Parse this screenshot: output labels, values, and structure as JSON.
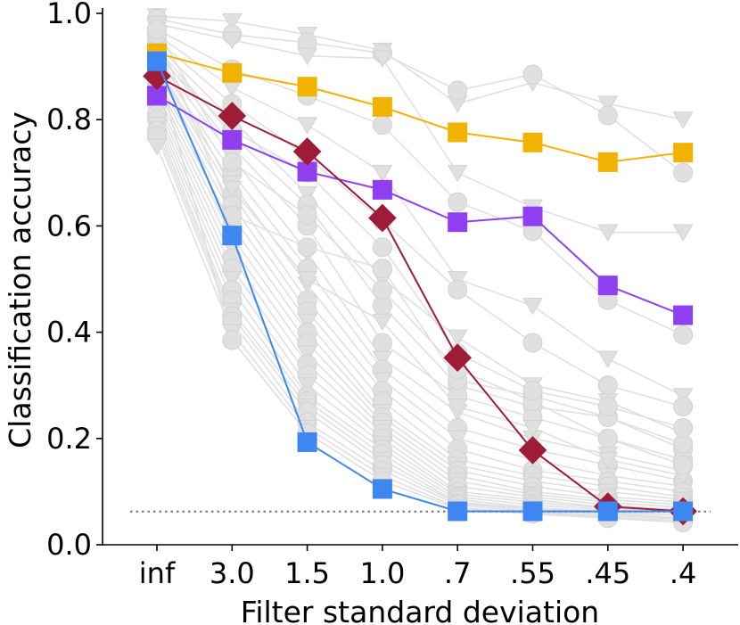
{
  "chart_data": {
    "type": "line",
    "title": "",
    "xlabel": "Filter standard deviation",
    "ylabel": "Classification accuracy",
    "categories": [
      "inf",
      "3.0",
      "1.5",
      "1.0",
      ".7",
      ".55",
      ".45",
      ".4"
    ],
    "ylim": [
      0.0,
      1.0
    ],
    "yticks": [
      "0.0",
      "0.2",
      "0.4",
      "0.6",
      "0.8",
      "1.0"
    ],
    "yticks_values": [
      0.0,
      0.2,
      0.4,
      0.6,
      0.8,
      1.0
    ],
    "chance_level": 0.0625,
    "colors": {
      "background": "#e0e0e0",
      "chance": "#808080",
      "yellow": "#f2b200",
      "purple": "#8f3ff0",
      "crimson": "#9f1c38",
      "blue": "#3e86f0"
    },
    "highlight_series": [
      {
        "name": "yellow-squares",
        "color": "#f2b200",
        "marker": "square",
        "values": [
          0.925,
          0.888,
          0.862,
          0.824,
          0.776,
          0.757,
          0.72,
          0.738
        ]
      },
      {
        "name": "purple-squares",
        "color": "#8f3ff0",
        "marker": "square",
        "values": [
          0.845,
          0.762,
          0.702,
          0.668,
          0.607,
          0.618,
          0.488,
          0.432
        ]
      },
      {
        "name": "crimson-diamonds",
        "color": "#9f1c38",
        "marker": "diamond",
        "values": [
          0.882,
          0.807,
          0.74,
          0.615,
          0.352,
          0.178,
          0.072,
          0.063
        ]
      },
      {
        "name": "blue-squares",
        "color": "#3e86f0",
        "marker": "square",
        "values": [
          0.91,
          0.582,
          0.193,
          0.105,
          0.063,
          0.063,
          0.063,
          0.063
        ]
      }
    ],
    "background_series": [
      {
        "marker": "triangle",
        "values": [
          0.995,
          0.985,
          0.96,
          0.93,
          0.83,
          0.87,
          0.83,
          0.8
        ]
      },
      {
        "marker": "circle",
        "values": [
          0.99,
          0.96,
          0.945,
          0.925,
          0.855,
          0.885,
          0.808,
          0.7
        ]
      },
      {
        "marker": "triangle",
        "values": [
          0.98,
          0.95,
          0.92,
          0.915,
          0.7,
          0.635,
          0.588,
          0.588
        ]
      },
      {
        "marker": "circle",
        "values": [
          0.97,
          0.895,
          0.845,
          0.79,
          0.645,
          0.59,
          0.46,
          0.395
        ]
      },
      {
        "marker": "triangle",
        "values": [
          0.96,
          0.86,
          0.79,
          0.7,
          0.5,
          0.45,
          0.35,
          0.28
        ]
      },
      {
        "marker": "circle",
        "values": [
          0.95,
          0.83,
          0.73,
          0.61,
          0.48,
          0.38,
          0.3,
          0.26
        ]
      },
      {
        "marker": "triangle",
        "values": [
          0.94,
          0.8,
          0.66,
          0.5,
          0.39,
          0.3,
          0.27,
          0.21
        ]
      },
      {
        "marker": "circle",
        "values": [
          0.935,
          0.77,
          0.64,
          0.45,
          0.3,
          0.26,
          0.24,
          0.18
        ]
      },
      {
        "marker": "circle",
        "values": [
          0.93,
          0.75,
          0.6,
          0.38,
          0.28,
          0.24,
          0.2,
          0.16
        ]
      },
      {
        "marker": "triangle",
        "values": [
          0.92,
          0.73,
          0.55,
          0.35,
          0.25,
          0.2,
          0.17,
          0.14
        ]
      },
      {
        "marker": "circle",
        "values": [
          0.91,
          0.7,
          0.52,
          0.33,
          0.22,
          0.18,
          0.15,
          0.12
        ]
      },
      {
        "marker": "triangle",
        "values": [
          0.9,
          0.68,
          0.49,
          0.31,
          0.2,
          0.16,
          0.13,
          0.11
        ]
      },
      {
        "marker": "circle",
        "values": [
          0.9,
          0.66,
          0.46,
          0.29,
          0.18,
          0.14,
          0.12,
          0.1
        ]
      },
      {
        "marker": "circle",
        "values": [
          0.89,
          0.64,
          0.44,
          0.27,
          0.16,
          0.13,
          0.11,
          0.09
        ]
      },
      {
        "marker": "triangle",
        "values": [
          0.88,
          0.62,
          0.42,
          0.25,
          0.15,
          0.12,
          0.1,
          0.085
        ]
      },
      {
        "marker": "circle",
        "values": [
          0.87,
          0.6,
          0.4,
          0.24,
          0.14,
          0.11,
          0.09,
          0.08
        ]
      },
      {
        "marker": "circle",
        "values": [
          0.86,
          0.58,
          0.38,
          0.23,
          0.13,
          0.1,
          0.085,
          0.075
        ]
      },
      {
        "marker": "triangle",
        "values": [
          0.85,
          0.56,
          0.36,
          0.22,
          0.12,
          0.095,
          0.08,
          0.07
        ]
      },
      {
        "marker": "circle",
        "values": [
          0.84,
          0.54,
          0.34,
          0.21,
          0.11,
          0.09,
          0.075,
          0.065
        ]
      },
      {
        "marker": "circle",
        "values": [
          0.83,
          0.52,
          0.32,
          0.2,
          0.1,
          0.085,
          0.07,
          0.06
        ]
      },
      {
        "marker": "triangle",
        "values": [
          0.82,
          0.5,
          0.3,
          0.19,
          0.095,
          0.08,
          0.068,
          0.06
        ]
      },
      {
        "marker": "circle",
        "values": [
          0.81,
          0.48,
          0.28,
          0.18,
          0.09,
          0.075,
          0.065,
          0.055
        ]
      },
      {
        "marker": "circle",
        "values": [
          0.8,
          0.46,
          0.27,
          0.17,
          0.085,
          0.07,
          0.062,
          0.055
        ]
      },
      {
        "marker": "triangle",
        "values": [
          0.79,
          0.44,
          0.26,
          0.16,
          0.08,
          0.068,
          0.06,
          0.05
        ]
      },
      {
        "marker": "circle",
        "values": [
          0.78,
          0.43,
          0.25,
          0.15,
          0.078,
          0.065,
          0.058,
          0.05
        ]
      },
      {
        "marker": "circle",
        "values": [
          0.77,
          0.42,
          0.23,
          0.14,
          0.075,
          0.062,
          0.055,
          0.048
        ]
      },
      {
        "marker": "triangle",
        "values": [
          0.75,
          0.4,
          0.22,
          0.13,
          0.07,
          0.06,
          0.052,
          0.045
        ]
      },
      {
        "marker": "circle",
        "values": [
          0.9,
          0.385,
          0.21,
          0.12,
          0.068,
          0.058,
          0.05,
          0.042
        ]
      },
      {
        "marker": "circle",
        "values": [
          0.96,
          0.62,
          0.56,
          0.52,
          0.31,
          0.28,
          0.24,
          0.19
        ]
      },
      {
        "marker": "triangle",
        "values": [
          0.93,
          0.67,
          0.5,
          0.42,
          0.26,
          0.22,
          0.16,
          0.13
        ]
      },
      {
        "marker": "circle",
        "values": [
          0.97,
          0.72,
          0.62,
          0.48,
          0.33,
          0.27,
          0.2,
          0.15
        ]
      },
      {
        "marker": "circle",
        "values": [
          0.92,
          0.78,
          0.7,
          0.56,
          0.36,
          0.29,
          0.26,
          0.22
        ]
      }
    ]
  }
}
